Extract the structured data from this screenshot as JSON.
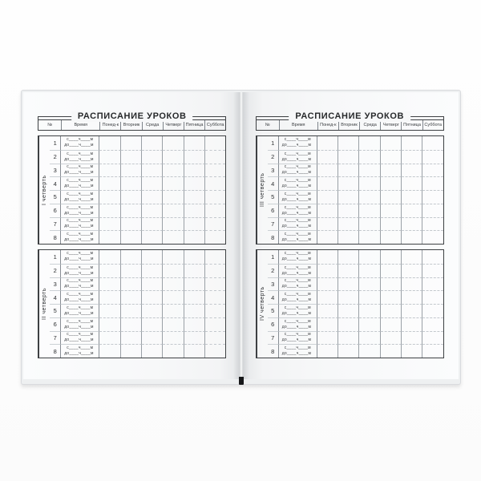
{
  "book": {
    "pages": [
      {
        "title": "РАСПИСАНИЕ УРОКОВ",
        "quarters": [
          "I четверть",
          "II четверть"
        ]
      },
      {
        "title": "РАСПИСАНИЕ УРОКОВ",
        "quarters": [
          "III четверть",
          "IV четверть"
        ]
      }
    ],
    "table": {
      "columns": [
        "№",
        "Время",
        "Понед-к",
        "Вторник",
        "Среда",
        "Четверг",
        "Пятница",
        "Суббота"
      ],
      "lesson_numbers": [
        "1",
        "2",
        "3",
        "4",
        "5",
        "6",
        "7",
        "8"
      ],
      "time_line_from": "с____ч____м",
      "time_line_to": "до____ч____м"
    },
    "colors": {
      "ink": "#27292b",
      "outer_border": "#3d4043",
      "column_line": "#9aa0a6",
      "row_line": "#ccd1d5",
      "page_background": "#f7f8f9",
      "bookmark": "#17181a"
    }
  }
}
